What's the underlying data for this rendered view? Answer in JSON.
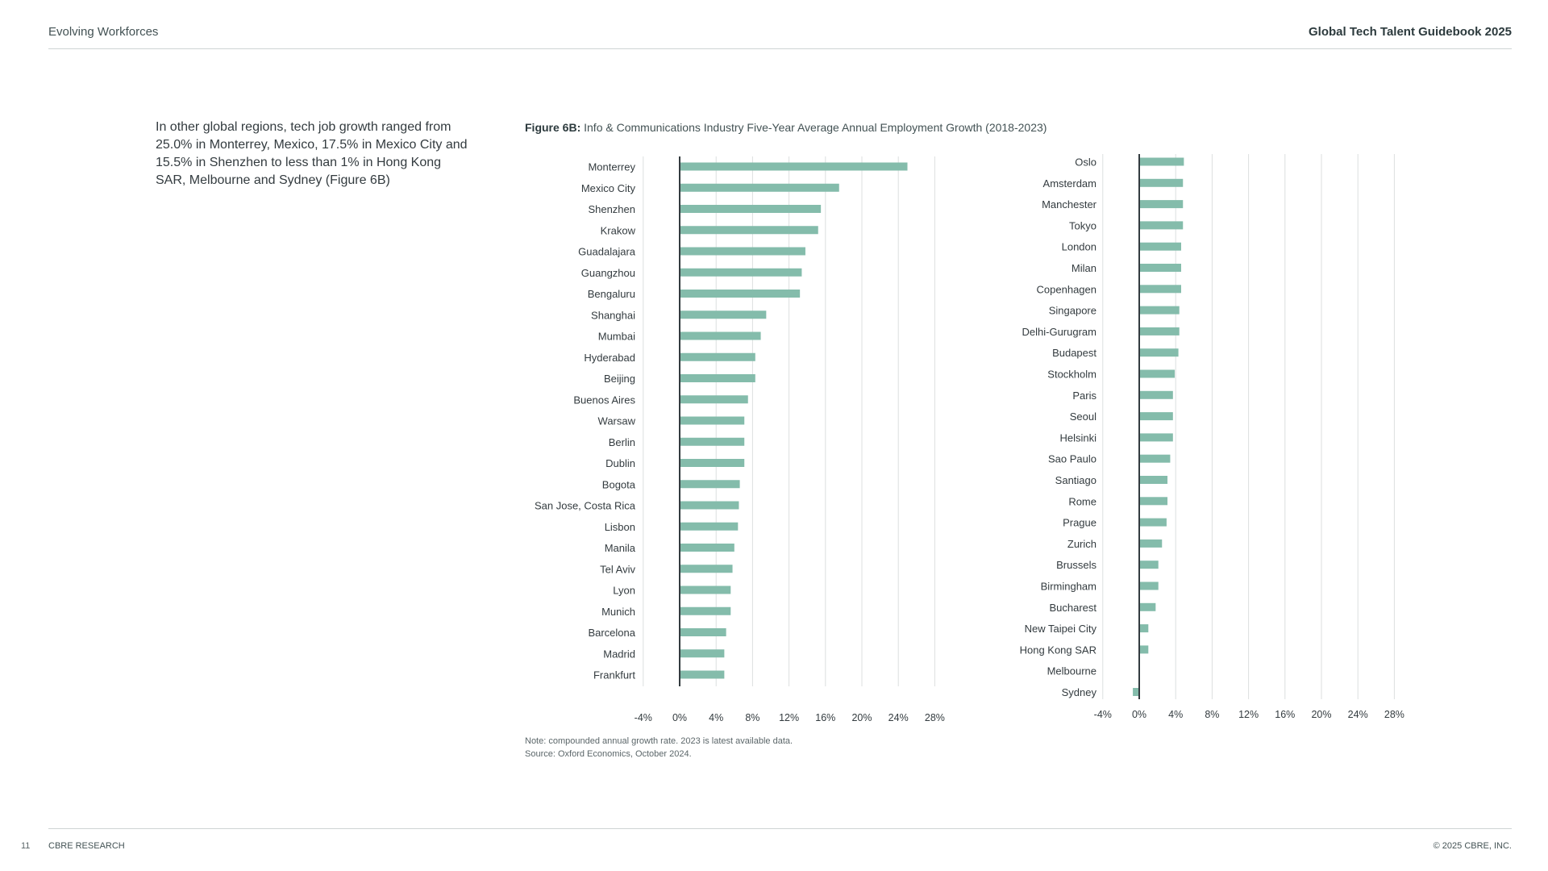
{
  "header": {
    "left": "Evolving Workforces",
    "right": "Global Tech Talent Guidebook 2025"
  },
  "intro_text": "In other global regions, tech job growth ranged from 25.0% in Monterrey, Mexico, 17.5% in Mexico City and 15.5% in Shenzhen to less than 1% in Hong Kong SAR, Melbourne and Sydney (Figure 6B)",
  "figure": {
    "label": "Figure 6B:",
    "title": "Info & Communications Industry Five-Year Average Annual Employment Growth (2018-2023)"
  },
  "note": {
    "line1": "Note: compounded annual growth rate. 2023 is latest available data.",
    "line2": "Source: Oxford Economics, October 2024."
  },
  "footer": {
    "page_number": "11",
    "left": "CBRE RESEARCH",
    "right": "© 2025 CBRE, INC."
  },
  "colors": {
    "bar": "#84bcab",
    "axis": "#333b3f",
    "grid": "#dcdfdf"
  },
  "chart_data": [
    {
      "type": "bar",
      "orientation": "horizontal",
      "xlim": [
        -4,
        28
      ],
      "ticks": [
        "-4%",
        "0%",
        "4%",
        "8%",
        "12%",
        "16%",
        "20%",
        "24%",
        "28%"
      ],
      "tick_values": [
        -4,
        0,
        4,
        8,
        12,
        16,
        20,
        24,
        28
      ],
      "categories": [
        "Monterrey",
        "Mexico City",
        "Shenzhen",
        "Krakow",
        "Guadalajara",
        "Guangzhou",
        "Bengaluru",
        "Shanghai",
        "Mumbai",
        "Hyderabad",
        "Beijing",
        "Buenos Aires",
        "Warsaw",
        "Berlin",
        "Dublin",
        "Bogota",
        "San Jose, Costa Rica",
        "Lisbon",
        "Manila",
        "Tel Aviv",
        "Lyon",
        "Munich",
        "Barcelona",
        "Madrid",
        "Frankfurt"
      ],
      "values": [
        25.0,
        17.5,
        15.5,
        15.2,
        13.8,
        13.4,
        13.2,
        9.5,
        8.9,
        8.3,
        8.3,
        7.5,
        7.1,
        7.1,
        7.1,
        6.6,
        6.5,
        6.4,
        6.0,
        5.8,
        5.6,
        5.6,
        5.1,
        4.9,
        4.9
      ],
      "grid": true
    },
    {
      "type": "bar",
      "orientation": "horizontal",
      "xlim": [
        -4,
        28
      ],
      "ticks": [
        "-4%",
        "0%",
        "4%",
        "8%",
        "12%",
        "16%",
        "20%",
        "24%",
        "28%"
      ],
      "tick_values": [
        -4,
        0,
        4,
        8,
        12,
        16,
        20,
        24,
        28
      ],
      "categories": [
        "Oslo",
        "Amsterdam",
        "Manchester",
        "Tokyo",
        "London",
        "Milan",
        "Copenhagen",
        "Singapore",
        "Delhi-Gurugram",
        "Budapest",
        "Stockholm",
        "Paris",
        "Seoul",
        "Helsinki",
        "Sao Paulo",
        "Santiago",
        "Rome",
        "Prague",
        "Zurich",
        "Brussels",
        "Birmingham",
        "Bucharest",
        "New Taipei City",
        "Hong Kong SAR",
        "Melbourne",
        "Sydney"
      ],
      "values": [
        4.9,
        4.8,
        4.8,
        4.8,
        4.6,
        4.6,
        4.6,
        4.4,
        4.4,
        4.3,
        3.9,
        3.7,
        3.7,
        3.7,
        3.4,
        3.1,
        3.1,
        3.0,
        2.5,
        2.1,
        2.1,
        1.8,
        1.0,
        1.0,
        0.0,
        -0.7
      ],
      "grid": true
    }
  ]
}
